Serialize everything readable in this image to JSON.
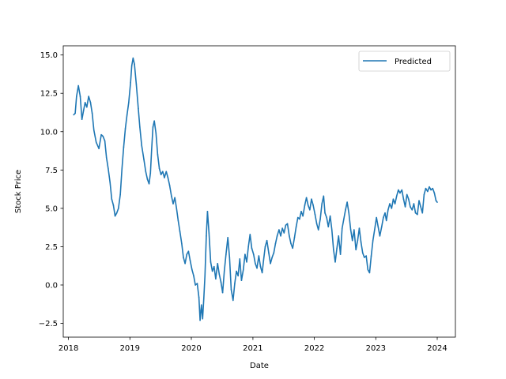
{
  "chart_data": {
    "type": "line",
    "title": "",
    "xlabel": "Date",
    "ylabel": "Stock Price",
    "x_type": "date",
    "xlim": [
      "2017-12-01",
      "2024-04-18"
    ],
    "ylim": [
      -3.4,
      15.6
    ],
    "x_ticks": [
      "2018",
      "2019",
      "2020",
      "2021",
      "2022",
      "2023",
      "2024"
    ],
    "y_ticks": [
      -2.5,
      0.0,
      2.5,
      5.0,
      7.5,
      10.0,
      12.5,
      15.0
    ],
    "y_tick_labels": [
      "−2.5",
      "0.0",
      "2.5",
      "5.0",
      "7.5",
      "10.0",
      "12.5",
      "15.0"
    ],
    "grid": false,
    "legend_position": "top-right",
    "series": [
      {
        "name": "Predicted",
        "color": "#1f77b4",
        "points": [
          [
            "2018-02-01",
            11.1
          ],
          [
            "2018-02-10",
            11.2
          ],
          [
            "2018-02-18",
            12.3
          ],
          [
            "2018-03-01",
            13.0
          ],
          [
            "2018-03-12",
            12.3
          ],
          [
            "2018-03-22",
            10.8
          ],
          [
            "2018-04-01",
            11.4
          ],
          [
            "2018-04-10",
            11.9
          ],
          [
            "2018-04-20",
            11.6
          ],
          [
            "2018-05-01",
            12.3
          ],
          [
            "2018-05-12",
            11.9
          ],
          [
            "2018-05-22",
            11.2
          ],
          [
            "2018-06-01",
            10.1
          ],
          [
            "2018-06-15",
            9.3
          ],
          [
            "2018-07-01",
            8.9
          ],
          [
            "2018-07-15",
            9.8
          ],
          [
            "2018-07-25",
            9.7
          ],
          [
            "2018-08-05",
            9.4
          ],
          [
            "2018-08-15",
            8.3
          ],
          [
            "2018-08-25",
            7.6
          ],
          [
            "2018-09-05",
            6.7
          ],
          [
            "2018-09-15",
            5.6
          ],
          [
            "2018-09-25",
            5.2
          ],
          [
            "2018-10-05",
            4.5
          ],
          [
            "2018-10-15",
            4.7
          ],
          [
            "2018-10-25",
            5.0
          ],
          [
            "2018-11-05",
            5.9
          ],
          [
            "2018-11-15",
            7.6
          ],
          [
            "2018-11-25",
            9.0
          ],
          [
            "2018-12-05",
            10.2
          ],
          [
            "2018-12-15",
            11.1
          ],
          [
            "2018-12-25",
            11.9
          ],
          [
            "2019-01-05",
            13.2
          ],
          [
            "2019-01-12",
            14.3
          ],
          [
            "2019-01-20",
            14.8
          ],
          [
            "2019-01-28",
            14.4
          ],
          [
            "2019-02-08",
            13.1
          ],
          [
            "2019-02-20",
            11.5
          ],
          [
            "2019-03-01",
            10.3
          ],
          [
            "2019-03-12",
            9.1
          ],
          [
            "2019-03-25",
            8.2
          ],
          [
            "2019-04-05",
            7.4
          ],
          [
            "2019-04-15",
            6.9
          ],
          [
            "2019-04-25",
            6.6
          ],
          [
            "2019-05-03",
            7.3
          ],
          [
            "2019-05-10",
            8.8
          ],
          [
            "2019-05-18",
            10.3
          ],
          [
            "2019-05-26",
            10.7
          ],
          [
            "2019-06-05",
            9.9
          ],
          [
            "2019-06-15",
            8.5
          ],
          [
            "2019-06-25",
            7.6
          ],
          [
            "2019-07-05",
            7.2
          ],
          [
            "2019-07-15",
            7.4
          ],
          [
            "2019-07-25",
            7.0
          ],
          [
            "2019-08-05",
            7.4
          ],
          [
            "2019-08-15",
            7.0
          ],
          [
            "2019-08-25",
            6.5
          ],
          [
            "2019-09-05",
            5.8
          ],
          [
            "2019-09-15",
            5.3
          ],
          [
            "2019-09-25",
            5.7
          ],
          [
            "2019-10-05",
            5.0
          ],
          [
            "2019-10-15",
            4.2
          ],
          [
            "2019-10-25",
            3.5
          ],
          [
            "2019-11-05",
            2.7
          ],
          [
            "2019-11-15",
            1.8
          ],
          [
            "2019-11-25",
            1.4
          ],
          [
            "2019-12-05",
            2.0
          ],
          [
            "2019-12-15",
            2.2
          ],
          [
            "2019-12-25",
            1.6
          ],
          [
            "2020-01-05",
            1.0
          ],
          [
            "2020-01-15",
            0.6
          ],
          [
            "2020-01-25",
            0.0
          ],
          [
            "2020-02-05",
            0.1
          ],
          [
            "2020-02-15",
            -0.8
          ],
          [
            "2020-02-22",
            -2.3
          ],
          [
            "2020-03-01",
            -1.3
          ],
          [
            "2020-03-08",
            -2.2
          ],
          [
            "2020-03-15",
            -0.9
          ],
          [
            "2020-03-22",
            0.6
          ],
          [
            "2020-03-30",
            3.2
          ],
          [
            "2020-04-06",
            4.8
          ],
          [
            "2020-04-15",
            3.4
          ],
          [
            "2020-04-25",
            1.5
          ],
          [
            "2020-05-05",
            0.9
          ],
          [
            "2020-05-15",
            1.2
          ],
          [
            "2020-05-25",
            0.4
          ],
          [
            "2020-06-05",
            1.4
          ],
          [
            "2020-06-15",
            0.7
          ],
          [
            "2020-06-25",
            0.2
          ],
          [
            "2020-07-05",
            -0.5
          ],
          [
            "2020-07-15",
            0.9
          ],
          [
            "2020-07-25",
            2.0
          ],
          [
            "2020-08-05",
            3.1
          ],
          [
            "2020-08-15",
            1.8
          ],
          [
            "2020-08-25",
            -0.3
          ],
          [
            "2020-09-05",
            -1.0
          ],
          [
            "2020-09-15",
            0.1
          ],
          [
            "2020-09-25",
            0.9
          ],
          [
            "2020-10-05",
            0.6
          ],
          [
            "2020-10-15",
            1.7
          ],
          [
            "2020-10-25",
            0.3
          ],
          [
            "2020-11-05",
            1.0
          ],
          [
            "2020-11-15",
            2.0
          ],
          [
            "2020-11-25",
            1.5
          ],
          [
            "2020-12-05",
            2.5
          ],
          [
            "2020-12-15",
            3.3
          ],
          [
            "2020-12-25",
            2.4
          ],
          [
            "2021-01-05",
            2.0
          ],
          [
            "2021-01-15",
            1.4
          ],
          [
            "2021-01-25",
            1.1
          ],
          [
            "2021-02-05",
            1.9
          ],
          [
            "2021-02-15",
            1.2
          ],
          [
            "2021-02-25",
            0.8
          ],
          [
            "2021-03-05",
            1.6
          ],
          [
            "2021-03-15",
            2.5
          ],
          [
            "2021-03-25",
            2.9
          ],
          [
            "2021-04-05",
            2.1
          ],
          [
            "2021-04-15",
            1.4
          ],
          [
            "2021-04-25",
            1.8
          ],
          [
            "2021-05-05",
            2.1
          ],
          [
            "2021-05-15",
            2.7
          ],
          [
            "2021-05-25",
            3.2
          ],
          [
            "2021-06-05",
            3.6
          ],
          [
            "2021-06-15",
            3.2
          ],
          [
            "2021-06-25",
            3.7
          ],
          [
            "2021-07-05",
            3.4
          ],
          [
            "2021-07-15",
            3.9
          ],
          [
            "2021-07-25",
            4.0
          ],
          [
            "2021-08-05",
            3.2
          ],
          [
            "2021-08-15",
            2.7
          ],
          [
            "2021-08-25",
            2.4
          ],
          [
            "2021-09-05",
            3.1
          ],
          [
            "2021-09-15",
            3.8
          ],
          [
            "2021-09-25",
            4.4
          ],
          [
            "2021-10-05",
            4.3
          ],
          [
            "2021-10-15",
            4.8
          ],
          [
            "2021-10-25",
            4.5
          ],
          [
            "2021-11-05",
            5.2
          ],
          [
            "2021-11-15",
            5.7
          ],
          [
            "2021-11-25",
            5.2
          ],
          [
            "2021-12-05",
            4.9
          ],
          [
            "2021-12-15",
            5.6
          ],
          [
            "2021-12-25",
            5.2
          ],
          [
            "2022-01-05",
            4.6
          ],
          [
            "2022-01-15",
            4.0
          ],
          [
            "2022-01-25",
            3.6
          ],
          [
            "2022-02-05",
            4.3
          ],
          [
            "2022-02-15",
            5.3
          ],
          [
            "2022-02-25",
            5.8
          ],
          [
            "2022-03-05",
            4.7
          ],
          [
            "2022-03-15",
            4.4
          ],
          [
            "2022-03-25",
            3.8
          ],
          [
            "2022-04-05",
            4.5
          ],
          [
            "2022-04-15",
            3.6
          ],
          [
            "2022-04-25",
            2.3
          ],
          [
            "2022-05-05",
            1.5
          ],
          [
            "2022-05-15",
            2.4
          ],
          [
            "2022-05-25",
            3.2
          ],
          [
            "2022-06-05",
            2.0
          ],
          [
            "2022-06-15",
            3.7
          ],
          [
            "2022-06-25",
            4.3
          ],
          [
            "2022-07-05",
            4.9
          ],
          [
            "2022-07-15",
            5.4
          ],
          [
            "2022-07-25",
            4.7
          ],
          [
            "2022-08-05",
            3.6
          ],
          [
            "2022-08-15",
            2.9
          ],
          [
            "2022-08-25",
            3.6
          ],
          [
            "2022-09-05",
            2.3
          ],
          [
            "2022-09-15",
            2.9
          ],
          [
            "2022-09-25",
            3.7
          ],
          [
            "2022-10-05",
            2.8
          ],
          [
            "2022-10-15",
            2.1
          ],
          [
            "2022-10-25",
            1.8
          ],
          [
            "2022-11-05",
            1.9
          ],
          [
            "2022-11-15",
            1.0
          ],
          [
            "2022-11-25",
            0.8
          ],
          [
            "2022-12-05",
            1.9
          ],
          [
            "2022-12-15",
            2.9
          ],
          [
            "2022-12-25",
            3.6
          ],
          [
            "2023-01-05",
            4.4
          ],
          [
            "2023-01-15",
            3.8
          ],
          [
            "2023-01-25",
            3.2
          ],
          [
            "2023-02-05",
            3.8
          ],
          [
            "2023-02-15",
            4.4
          ],
          [
            "2023-02-25",
            4.7
          ],
          [
            "2023-03-05",
            4.2
          ],
          [
            "2023-03-15",
            4.9
          ],
          [
            "2023-03-25",
            5.3
          ],
          [
            "2023-04-05",
            5.0
          ],
          [
            "2023-04-15",
            5.6
          ],
          [
            "2023-04-25",
            5.3
          ],
          [
            "2023-05-05",
            5.8
          ],
          [
            "2023-05-15",
            6.2
          ],
          [
            "2023-05-25",
            6.0
          ],
          [
            "2023-06-05",
            6.2
          ],
          [
            "2023-06-15",
            5.6
          ],
          [
            "2023-06-25",
            5.1
          ],
          [
            "2023-07-05",
            5.9
          ],
          [
            "2023-07-15",
            5.6
          ],
          [
            "2023-07-25",
            5.1
          ],
          [
            "2023-08-05",
            4.9
          ],
          [
            "2023-08-15",
            5.3
          ],
          [
            "2023-08-25",
            4.7
          ],
          [
            "2023-09-05",
            4.6
          ],
          [
            "2023-09-15",
            5.5
          ],
          [
            "2023-09-25",
            5.1
          ],
          [
            "2023-10-05",
            4.7
          ],
          [
            "2023-10-15",
            5.9
          ],
          [
            "2023-10-25",
            6.3
          ],
          [
            "2023-11-05",
            6.1
          ],
          [
            "2023-11-15",
            6.4
          ],
          [
            "2023-11-25",
            6.2
          ],
          [
            "2023-12-05",
            6.3
          ],
          [
            "2023-12-15",
            6.0
          ],
          [
            "2023-12-25",
            5.5
          ],
          [
            "2024-01-01",
            5.4
          ]
        ]
      }
    ]
  }
}
